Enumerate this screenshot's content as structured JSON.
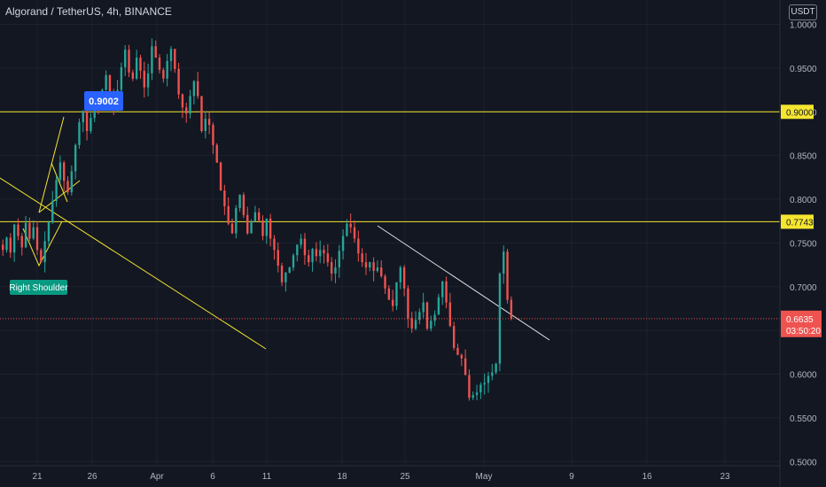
{
  "title": "Algorand / TetherUS, 4h, BINANCE",
  "currency": "USDT",
  "colors": {
    "background": "#131722",
    "up": "#26a69a",
    "down": "#ef5350",
    "level": "#f5e52f",
    "trendline": "#e0e0e0",
    "grid": "#1e222d",
    "label_blue": "#2962ff",
    "label_teal": "#089981"
  },
  "chart_data": {
    "type": "candlestick",
    "ylim": [
      0.4952,
      1.0279
    ],
    "y_ticks": [
      "1.0000",
      "0.9500",
      "0.9000",
      "0.8500",
      "0.8000",
      "0.7500",
      "0.7000",
      "0.6500",
      "0.6000",
      "0.5500",
      "0.5000"
    ],
    "x_ticks": [
      "21",
      "26",
      "Apr",
      "6",
      "11",
      "18",
      "25",
      "May",
      "9",
      "16",
      "23"
    ],
    "horizontal_levels": [
      {
        "price": 0.9,
        "label": "0.9000"
      },
      {
        "price": 0.7743,
        "label": "0.7743"
      }
    ],
    "last_price": {
      "price": 0.6635,
      "label": "0.6635",
      "countdown": "03:50:20"
    },
    "annotations": [
      {
        "text": "0.9002",
        "kind": "price-label"
      },
      {
        "text": "Right Shoulder",
        "kind": "pattern-label"
      }
    ],
    "path": [
      0.748,
      0.742,
      0.756,
      0.739,
      0.771,
      0.758,
      0.745,
      0.773,
      0.755,
      0.768,
      0.742,
      0.728,
      0.752,
      0.774,
      0.798,
      0.822,
      0.842,
      0.821,
      0.808,
      0.832,
      0.862,
      0.888,
      0.901,
      0.878,
      0.893,
      0.912,
      0.905,
      0.925,
      0.942,
      0.918,
      0.904,
      0.925,
      0.951,
      0.971,
      0.945,
      0.938,
      0.962,
      0.947,
      0.928,
      0.944,
      0.975,
      0.962,
      0.948,
      0.938,
      0.958,
      0.972,
      0.949,
      0.92,
      0.905,
      0.898,
      0.918,
      0.935,
      0.918,
      0.878,
      0.892,
      0.885,
      0.862,
      0.842,
      0.81,
      0.792,
      0.772,
      0.761,
      0.79,
      0.805,
      0.782,
      0.761,
      0.775,
      0.785,
      0.776,
      0.758,
      0.778,
      0.755,
      0.742,
      0.724,
      0.705,
      0.716,
      0.722,
      0.736,
      0.748,
      0.755,
      0.736,
      0.728,
      0.743,
      0.735,
      0.742,
      0.738,
      0.728,
      0.715,
      0.722,
      0.741,
      0.758,
      0.772,
      0.768,
      0.755,
      0.738,
      0.728,
      0.722,
      0.728,
      0.718,
      0.722,
      0.712,
      0.698,
      0.685,
      0.678,
      0.705,
      0.722,
      0.698,
      0.664,
      0.652,
      0.662,
      0.671,
      0.682,
      0.652,
      0.661,
      0.668,
      0.688,
      0.706,
      0.682,
      0.655,
      0.63,
      0.622,
      0.618,
      0.599,
      0.573,
      0.576,
      0.579,
      0.588,
      0.59,
      0.598,
      0.602,
      0.612,
      0.715,
      0.74,
      0.685,
      0.6635
    ]
  }
}
